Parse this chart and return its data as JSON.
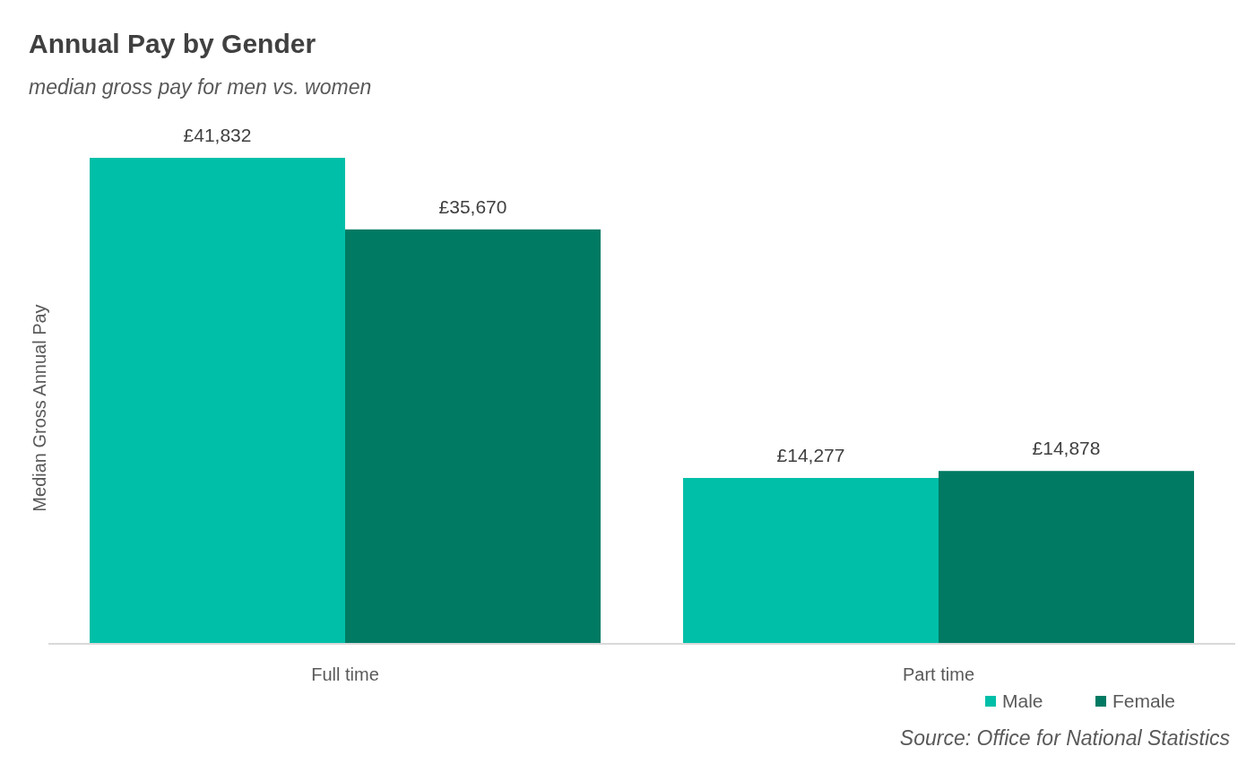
{
  "chart_data": {
    "type": "bar",
    "title": "Annual Pay by Gender",
    "subtitle": "median gross pay for men vs. women",
    "ylabel": "Median Gross Annual Pay",
    "categories": [
      "Full time",
      "Part time"
    ],
    "series": [
      {
        "name": "Male",
        "color": "#00bfa8",
        "values": [
          41832,
          14277
        ],
        "value_labels": [
          "£41,832",
          "£14,277"
        ]
      },
      {
        "name": "Female",
        "color": "#007a63",
        "values": [
          35670,
          14878
        ],
        "value_labels": [
          "£35,670",
          "£14,878"
        ]
      }
    ],
    "legend": "bottom right",
    "annotations": [
      "Source: Office for National Statistics"
    ]
  }
}
